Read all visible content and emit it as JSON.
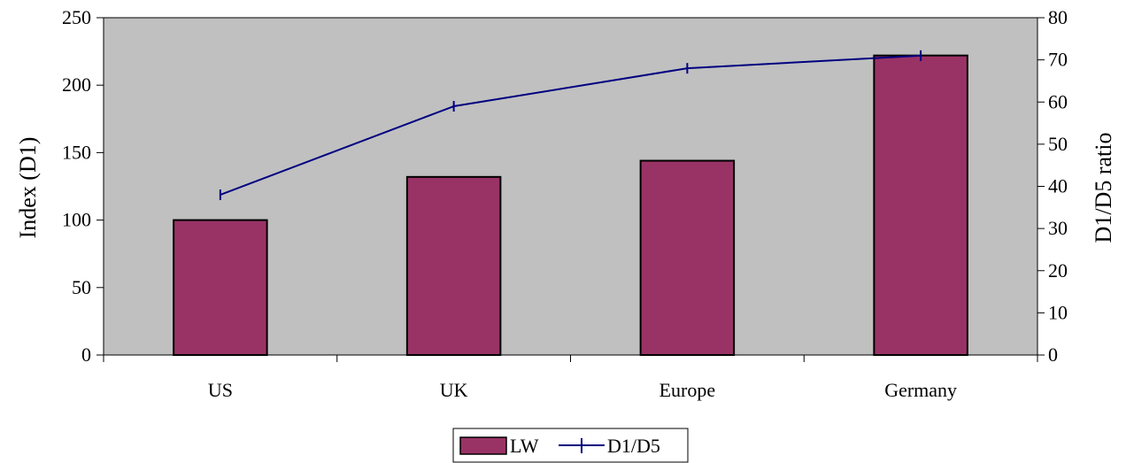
{
  "chart_data": {
    "type": "bar",
    "categories": [
      "US",
      "UK",
      "Europe",
      "Germany"
    ],
    "series": [
      {
        "name": "LW",
        "kind": "bar",
        "axis": "left",
        "values": [
          100,
          132,
          144,
          222
        ],
        "color": "#993366"
      },
      {
        "name": "D1/D5",
        "kind": "line",
        "axis": "right",
        "values": [
          38,
          59,
          68,
          71
        ],
        "color": "#000080"
      }
    ],
    "ylabel": "Index (D1)",
    "ylabel_right": "D1/D5 ratio",
    "ylim": [
      0,
      250
    ],
    "ylim_right": [
      0,
      80
    ],
    "y_ticks": [
      "0",
      "50",
      "100",
      "150",
      "200",
      "250"
    ],
    "y_right_ticks": [
      "0",
      "10",
      "20",
      "30",
      "40",
      "50",
      "60",
      "70",
      "80"
    ],
    "plot_background": "#c0c0c0",
    "grid": false,
    "legend_position": "bottom"
  }
}
